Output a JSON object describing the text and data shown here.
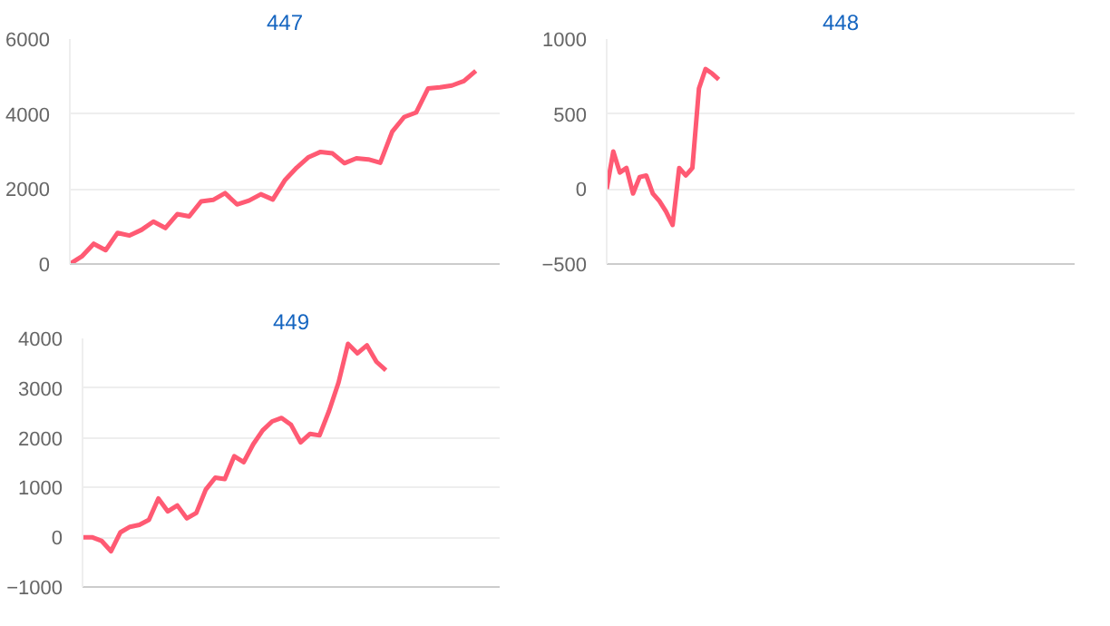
{
  "chart_data": [
    {
      "type": "line",
      "title": "447",
      "categories": [
        null,
        null,
        null,
        null,
        null,
        null,
        null,
        null,
        null,
        null,
        null,
        null,
        null,
        null,
        null,
        null,
        null,
        null,
        null,
        null,
        null,
        null,
        null,
        null,
        null,
        null,
        null,
        null,
        null,
        null,
        null,
        null,
        null,
        null,
        null,
        null,
        null
      ],
      "series": [
        {
          "color": "#ff5a73",
          "values": [
            0,
            200,
            540,
            370,
            830,
            760,
            910,
            1130,
            960,
            1330,
            1270,
            1670,
            1710,
            1890,
            1590,
            1690,
            1860,
            1720,
            2230,
            2570,
            2850,
            2990,
            2950,
            2690,
            2820,
            2790,
            2700,
            3530,
            3920,
            4040,
            4680,
            4710,
            4760,
            4880,
            5150,
            null,
            null
          ]
        }
      ],
      "ylim": [
        0,
        6000
      ],
      "yticks": [
        0,
        2000,
        4000,
        6000
      ],
      "grid": "y",
      "tick_labels": "y"
    },
    {
      "type": "line",
      "title": "448",
      "categories": [
        null,
        null,
        null,
        null,
        null,
        null,
        null,
        null,
        null,
        null,
        null,
        null,
        null,
        null,
        null,
        null,
        null,
        null,
        null,
        null,
        null,
        null,
        null,
        null,
        null,
        null,
        null,
        null,
        null,
        null,
        null,
        null,
        null,
        null,
        null,
        null,
        null,
        null,
        null,
        null,
        null,
        null,
        null,
        null,
        null,
        null,
        null,
        null,
        null,
        null,
        null,
        null,
        null,
        null,
        null,
        null,
        null,
        null,
        null,
        null,
        null,
        null,
        null,
        null,
        null,
        null,
        null,
        null,
        null,
        null,
        null,
        null
      ],
      "series": [
        {
          "color": "#ff5a73",
          "values": [
            0,
            250,
            110,
            140,
            -30,
            80,
            90,
            -30,
            -80,
            -150,
            -240,
            140,
            90,
            140,
            670,
            800,
            770,
            730,
            null,
            null,
            null,
            null,
            null,
            null,
            null,
            null,
            null,
            null,
            null,
            null,
            null,
            null,
            null,
            null,
            null,
            null,
            null,
            null,
            null,
            null,
            null,
            null,
            null,
            null,
            null,
            null,
            null,
            null,
            null,
            null,
            null,
            null,
            null,
            null,
            null,
            null,
            null,
            null,
            null,
            null,
            null,
            null,
            null,
            null,
            null,
            null,
            null,
            null,
            null,
            null,
            null,
            null
          ]
        }
      ],
      "ylim": [
        -500,
        1000
      ],
      "yticks": [
        -500,
        0,
        500,
        1000
      ],
      "grid": "y",
      "tick_labels": "y"
    },
    {
      "type": "line",
      "title": "449",
      "categories": [
        null,
        null,
        null,
        null,
        null,
        null,
        null,
        null,
        null,
        null,
        null,
        null,
        null,
        null,
        null,
        null,
        null,
        null,
        null,
        null,
        null,
        null,
        null,
        null,
        null,
        null,
        null,
        null,
        null,
        null,
        null,
        null,
        null,
        null,
        null,
        null,
        null,
        null,
        null,
        null,
        null,
        null,
        null,
        null,
        null
      ],
      "series": [
        {
          "color": "#ff5a73",
          "values": [
            0,
            0,
            -70,
            -280,
            100,
            210,
            250,
            350,
            780,
            520,
            640,
            380,
            490,
            960,
            1200,
            1170,
            1630,
            1510,
            1870,
            2150,
            2330,
            2400,
            2260,
            1910,
            2080,
            2050,
            2540,
            3110,
            3890,
            3700,
            3860,
            3530,
            3360,
            null,
            null,
            null,
            null,
            null,
            null,
            null,
            null,
            null,
            null,
            null,
            null
          ]
        }
      ],
      "ylim": [
        -1000,
        4000
      ],
      "yticks": [
        -1000,
        0,
        1000,
        2000,
        3000,
        4000
      ],
      "grid": "y",
      "tick_labels": "y"
    }
  ]
}
